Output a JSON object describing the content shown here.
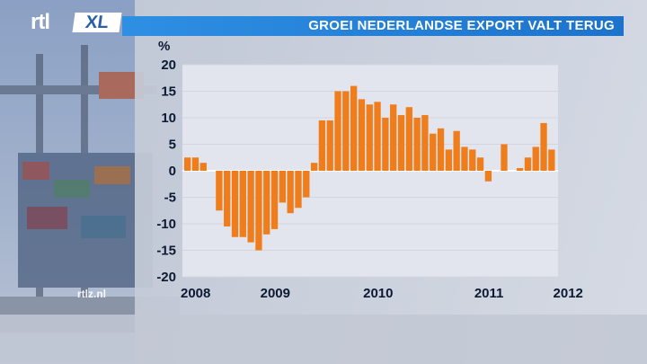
{
  "header": {
    "channel_logo_rtl": "rtl",
    "channel_logo_xl": "XL",
    "title": "GROEI NEDERLANDSE EXPORT VALT TERUG"
  },
  "watermark": "rtlz.nl",
  "colors": {
    "title_bar": "#2386de",
    "bar": "#ef7d1c",
    "plot_bg": "#e3e5ee",
    "label": "#0d1a33"
  },
  "chart_data": {
    "type": "bar",
    "ylabel": "%",
    "ylim": [
      -20,
      20
    ],
    "yticks": [
      20,
      15,
      10,
      5,
      0,
      -5,
      -10,
      -15,
      -20
    ],
    "grid": true,
    "x_labels": [
      "2008",
      "2009",
      "2010",
      "2011",
      "2012"
    ],
    "x_label_positions": [
      0,
      11,
      24,
      38,
      48
    ],
    "values": [
      2.5,
      2.5,
      1.5,
      0,
      -7.5,
      -10.5,
      -12.5,
      -12.5,
      -13.5,
      -15,
      -12,
      -11,
      -6,
      -8,
      -7,
      -5,
      1.5,
      9.5,
      9.5,
      15,
      15,
      16,
      13.5,
      12.5,
      13,
      10,
      12.5,
      10.5,
      12,
      10,
      10.5,
      7,
      8,
      4,
      7.5,
      4.5,
      4,
      2.5,
      -2,
      0,
      5,
      0,
      0.5,
      2.5,
      4.5,
      9,
      4
    ]
  }
}
